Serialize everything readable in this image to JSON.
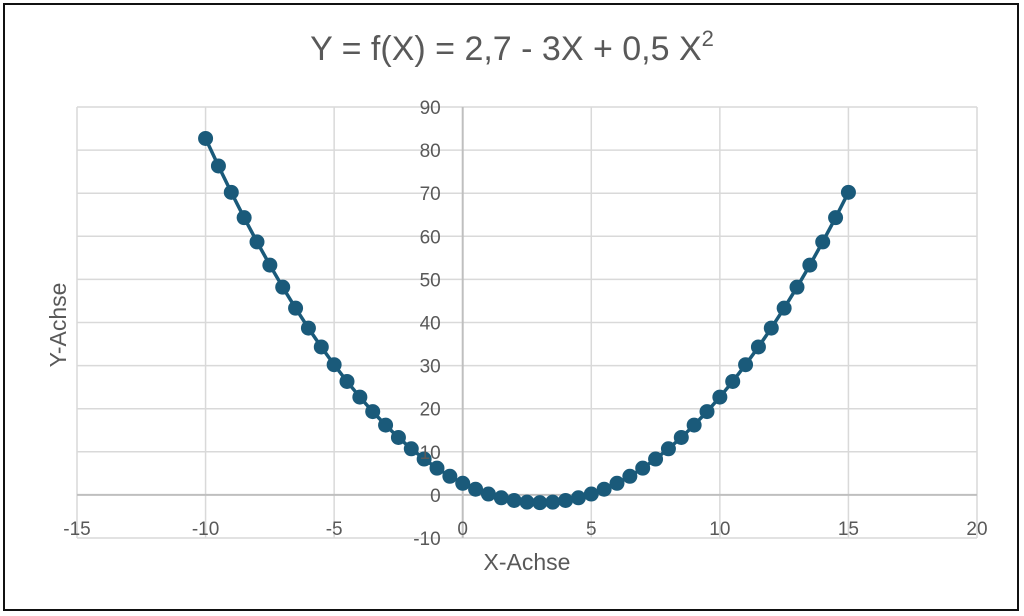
{
  "chart_data": {
    "type": "scatter",
    "title": {
      "main": "Y = f(X) =   2,7 - 3X + 0,5 X",
      "superscript": "2"
    },
    "xlabel": "X-Achse",
    "ylabel": "Y-Achse",
    "xlim": [
      -15,
      20
    ],
    "ylim": [
      -10,
      90
    ],
    "x_ticks": [
      -15,
      -10,
      -5,
      0,
      5,
      10,
      15,
      20
    ],
    "y_ticks": [
      -10,
      0,
      10,
      20,
      30,
      40,
      50,
      60,
      70,
      80,
      90
    ],
    "x_tick_labels": [
      "-15",
      "-10",
      "-5",
      "0",
      "5",
      "10",
      "15",
      "20"
    ],
    "y_tick_labels": [
      "-10",
      "0",
      "10",
      "20",
      "30",
      "40",
      "50",
      "60",
      "70",
      "80",
      "90"
    ],
    "grid": true,
    "legend": "none",
    "series": [
      {
        "color": "#1a5a7a",
        "marker": "circle",
        "line": true,
        "x": [
          -10,
          -9.5,
          -9,
          -8.5,
          -8,
          -7.5,
          -7,
          -6.5,
          -6,
          -5.5,
          -5,
          -4.5,
          -4,
          -3.5,
          -3,
          -2.5,
          -2,
          -1.5,
          -1,
          -0.5,
          0,
          0.5,
          1,
          1.5,
          2,
          2.5,
          3,
          3.5,
          4,
          4.5,
          5,
          5.5,
          6,
          6.5,
          7,
          7.5,
          8,
          8.5,
          9,
          9.5,
          10,
          10.5,
          11,
          11.5,
          12,
          12.5,
          13,
          13.5,
          14,
          14.5,
          15
        ],
        "y": [
          82.7,
          76.325,
          70.2,
          64.325,
          58.7,
          53.325,
          48.2,
          43.325,
          38.7,
          34.325,
          30.2,
          26.325,
          22.7,
          19.325,
          16.2,
          13.325,
          10.7,
          8.325,
          6.2,
          4.325,
          2.7,
          1.325,
          0.2,
          -0.675,
          -1.3,
          -1.675,
          -1.8,
          -1.675,
          -1.3,
          -0.675,
          0.2,
          1.325,
          2.7,
          4.325,
          6.2,
          8.325,
          10.7,
          13.325,
          16.2,
          19.325,
          22.7,
          26.325,
          30.2,
          34.325,
          38.7,
          43.325,
          48.2,
          53.325,
          58.7,
          64.325,
          70.2
        ]
      }
    ]
  }
}
